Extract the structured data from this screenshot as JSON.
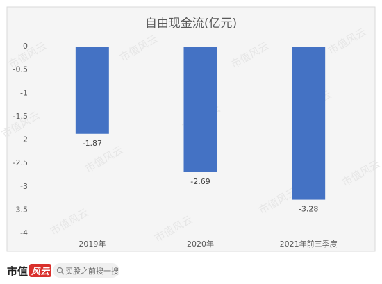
{
  "chart_data": {
    "type": "bar",
    "title": "自由现金流(亿元)",
    "categories": [
      "2019年",
      "2020年",
      "2021年前三季度"
    ],
    "values": [
      -1.87,
      -2.69,
      -3.28
    ],
    "color": "#4472c4",
    "ylim": [
      -4,
      0
    ],
    "yticks": [
      0,
      -0.5,
      -1,
      -1.5,
      -2,
      -2.5,
      -3,
      -3.5,
      -4
    ],
    "grid": false
  },
  "watermark": "市值风云",
  "footer": {
    "logo": "市值",
    "logo_accent": "风云",
    "search": "买股之前搜一搜"
  }
}
